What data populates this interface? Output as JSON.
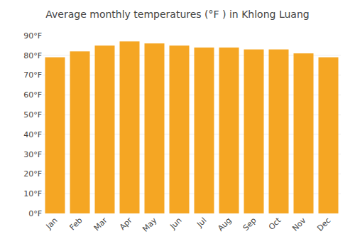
{
  "chart_data": {
    "type": "bar",
    "title": "Average monthly temperatures (°F ) in Khlong Luang",
    "categories": [
      "Jan",
      "Feb",
      "Mar",
      "Apr",
      "May",
      "Jun",
      "Jul",
      "Aug",
      "Sep",
      "Oct",
      "Nov",
      "Dec"
    ],
    "values": [
      79,
      82,
      85,
      87,
      86,
      85,
      84,
      84,
      83,
      83,
      81,
      79
    ],
    "color": "#F5A623",
    "ylim": [
      0,
      90
    ],
    "yticks": [
      {
        "value": 0,
        "label": "0°F"
      },
      {
        "value": 10,
        "label": "10°F"
      },
      {
        "value": 20,
        "label": "20°F"
      },
      {
        "value": 30,
        "label": "30°F"
      },
      {
        "value": 40,
        "label": "40°F"
      },
      {
        "value": 50,
        "label": "50°F"
      },
      {
        "value": 60,
        "label": "60°F"
      },
      {
        "value": 70,
        "label": "70°F"
      },
      {
        "value": 80,
        "label": "80°F"
      },
      {
        "value": 90,
        "label": "90°F"
      }
    ],
    "grid": true
  }
}
